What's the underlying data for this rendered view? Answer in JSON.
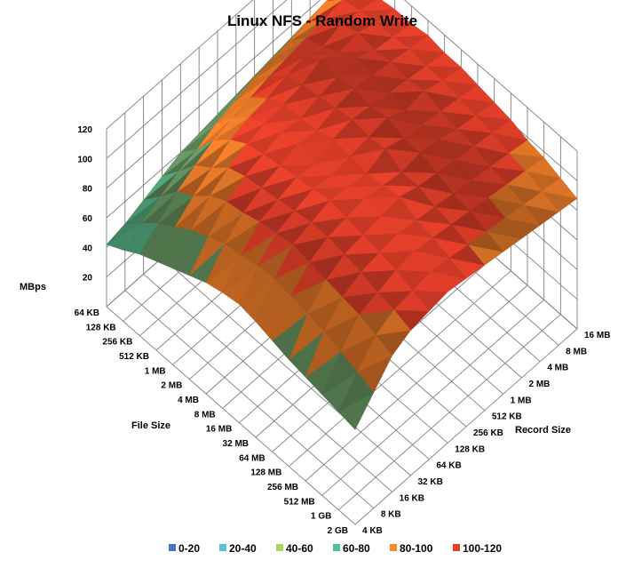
{
  "chart_data": {
    "type": "surface",
    "title": "Linux NFS - Random Write",
    "zlabel": "MBps",
    "xlabel": "File Size",
    "ylabel": "Record Size",
    "zlim": [
      0,
      120
    ],
    "z_ticks": [
      "20",
      "40",
      "60",
      "80",
      "100",
      "120"
    ],
    "file_sizes": [
      "64 KB",
      "128 KB",
      "256 KB",
      "512 KB",
      "1 MB",
      "2 MB",
      "4 MB",
      "8 MB",
      "16 MB",
      "32 MB",
      "64 MB",
      "128 MB",
      "256 MB",
      "512 MB",
      "1 GB",
      "2 GB"
    ],
    "record_sizes": [
      "4 KB",
      "8 KB",
      "16 KB",
      "32 KB",
      "64 KB",
      "128 KB",
      "256 KB",
      "512 KB",
      "1 MB",
      "2 MB",
      "4 MB",
      "8 MB",
      "16 MB"
    ],
    "legend": [
      {
        "label": "0-20",
        "color": "#4472c4"
      },
      {
        "label": "20-40",
        "color": "#5bc0e0"
      },
      {
        "label": "40-60",
        "color": "#a9d65a"
      },
      {
        "label": "60-80",
        "color": "#4fbf9f"
      },
      {
        "label": "80-100",
        "color": "#f58a2a"
      },
      {
        "label": "100-120",
        "color": "#e8402a"
      }
    ],
    "grid": true,
    "legend_position": "bottom",
    "values": [
      [
        42,
        45,
        50,
        55,
        60,
        62,
        64,
        66,
        68,
        70,
        72,
        74,
        76
      ],
      [
        48,
        55,
        62,
        68,
        72,
        78,
        82,
        86,
        88,
        90,
        92,
        95,
        96
      ],
      [
        55,
        65,
        75,
        82,
        88,
        92,
        95,
        98,
        100,
        102,
        104,
        106,
        105
      ],
      [
        60,
        72,
        82,
        90,
        98,
        102,
        104,
        108,
        110,
        106,
        110,
        108,
        106
      ],
      [
        65,
        80,
        92,
        100,
        105,
        108,
        110,
        112,
        118,
        112,
        114,
        110,
        108
      ],
      [
        70,
        85,
        98,
        104,
        108,
        112,
        110,
        114,
        116,
        118,
        112,
        110,
        108
      ],
      [
        75,
        90,
        100,
        106,
        110,
        114,
        112,
        116,
        118,
        116,
        114,
        112,
        110
      ],
      [
        78,
        92,
        104,
        108,
        112,
        110,
        116,
        118,
        116,
        114,
        112,
        110,
        108
      ],
      [
        80,
        95,
        106,
        110,
        114,
        112,
        114,
        116,
        118,
        112,
        114,
        110,
        108
      ],
      [
        78,
        96,
        108,
        112,
        116,
        114,
        112,
        118,
        114,
        112,
        110,
        108,
        106
      ],
      [
        75,
        94,
        106,
        112,
        114,
        116,
        114,
        112,
        114,
        112,
        108,
        106,
        104
      ],
      [
        72,
        92,
        104,
        110,
        112,
        114,
        116,
        112,
        110,
        108,
        106,
        104,
        102
      ],
      [
        70,
        90,
        102,
        108,
        110,
        112,
        110,
        108,
        106,
        104,
        102,
        100,
        98
      ],
      [
        68,
        86,
        100,
        104,
        108,
        110,
        108,
        106,
        104,
        102,
        100,
        98,
        96
      ],
      [
        66,
        82,
        96,
        102,
        104,
        106,
        104,
        102,
        100,
        98,
        96,
        94,
        92
      ],
      [
        64,
        78,
        92,
        98,
        100,
        102,
        100,
        98,
        96,
        94,
        92,
        90,
        88
      ]
    ]
  }
}
